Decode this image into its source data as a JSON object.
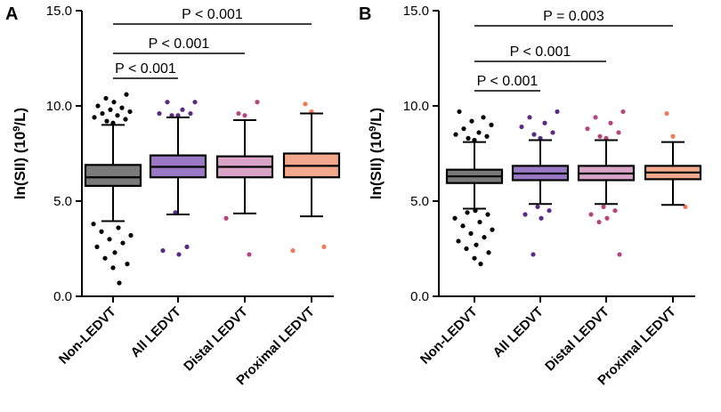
{
  "chart_data": [
    {
      "type": "box",
      "panel_label": "A",
      "ylabel": "ln(SII) (10",
      "ylabel_sup": "9",
      "ylabel_tail": "/L)",
      "ylim": [
        0,
        15
      ],
      "yticks": [
        0.0,
        5.0,
        10.0,
        15.0
      ],
      "ytick_labels": [
        "0.0",
        "5.0",
        "10.0",
        "15.0"
      ],
      "categories": [
        "Non-LEDVT",
        "All LEDVT",
        "Distal LEDVT",
        "Proximal LEDVT"
      ],
      "colors": [
        "#7a7a7a",
        "#9a79c4",
        "#d9a3c8",
        "#f2a88c"
      ],
      "dot_colors": [
        "#000000",
        "#5b2a86",
        "#b5457f",
        "#ee7b55"
      ],
      "boxes": [
        {
          "q1": 5.8,
          "median": 6.25,
          "q3": 6.9,
          "low": 3.95,
          "high": 9.0
        },
        {
          "q1": 6.25,
          "median": 6.8,
          "q3": 7.4,
          "low": 4.3,
          "high": 9.4
        },
        {
          "q1": 6.25,
          "median": 6.8,
          "q3": 7.35,
          "low": 4.35,
          "high": 9.25
        },
        {
          "q1": 6.25,
          "median": 6.85,
          "q3": 7.5,
          "low": 4.2,
          "high": 9.6
        }
      ],
      "outliers": [
        [
          9.1,
          9.2,
          9.3,
          9.4,
          9.5,
          9.6,
          9.7,
          9.8,
          9.9,
          10.0,
          10.2,
          10.4,
          10.6,
          3.8,
          3.6,
          3.4,
          3.2,
          3.0,
          2.8,
          2.6,
          2.3,
          2.0,
          1.7,
          1.5,
          0.7
        ],
        [
          9.5,
          9.5,
          9.6,
          9.6,
          9.8,
          10.2,
          10.2,
          4.4,
          2.6,
          2.4,
          2.2
        ],
        [
          9.5,
          9.6,
          10.2,
          4.1,
          2.2
        ],
        [
          9.7,
          10.1,
          2.6,
          2.4
        ]
      ],
      "comparisons": [
        {
          "from": 0,
          "to": 1,
          "label": "P < 0.001"
        },
        {
          "from": 0,
          "to": 2,
          "label": "P < 0.001"
        },
        {
          "from": 0,
          "to": 3,
          "label": "P < 0.001"
        }
      ]
    },
    {
      "type": "box",
      "panel_label": "B",
      "ylabel": "ln(SII) (10",
      "ylabel_sup": "9",
      "ylabel_tail": "/L)",
      "ylim": [
        0,
        15
      ],
      "yticks": [
        0.0,
        5.0,
        10.0,
        15.0
      ],
      "ytick_labels": [
        "0.0",
        "5.0",
        "10.0",
        "15.0"
      ],
      "categories": [
        "Non-LEDVT",
        "All LEDVT",
        "Distal LEDVT",
        "Proximal LEDVT"
      ],
      "colors": [
        "#7a7a7a",
        "#9a79c4",
        "#d9a3c8",
        "#f2a88c"
      ],
      "dot_colors": [
        "#000000",
        "#5b2a86",
        "#b5457f",
        "#ee7b55"
      ],
      "boxes": [
        {
          "q1": 5.95,
          "median": 6.3,
          "q3": 6.65,
          "low": 4.6,
          "high": 8.1
        },
        {
          "q1": 6.1,
          "median": 6.45,
          "q3": 6.85,
          "low": 4.85,
          "high": 8.2
        },
        {
          "q1": 6.1,
          "median": 6.45,
          "q3": 6.85,
          "low": 4.85,
          "high": 8.2
        },
        {
          "q1": 6.15,
          "median": 6.5,
          "q3": 6.85,
          "low": 4.8,
          "high": 8.1
        }
      ],
      "outliers": [
        [
          8.2,
          8.3,
          8.4,
          8.5,
          8.6,
          8.8,
          9.0,
          9.2,
          9.4,
          9.7,
          4.5,
          4.4,
          4.3,
          4.1,
          3.9,
          3.7,
          3.5,
          3.3,
          3.1,
          2.9,
          2.7,
          2.5,
          2.3,
          2.0,
          1.7
        ],
        [
          8.3,
          8.5,
          8.6,
          8.9,
          9.1,
          9.4,
          9.7,
          4.7,
          4.5,
          4.3,
          4.1,
          2.2
        ],
        [
          8.3,
          8.4,
          8.6,
          8.8,
          9.1,
          9.4,
          9.7,
          4.7,
          4.5,
          4.3,
          4.1,
          3.9,
          2.2
        ],
        [
          8.4,
          9.6,
          4.7
        ]
      ],
      "comparisons": [
        {
          "from": 0,
          "to": 1,
          "label": "P < 0.001"
        },
        {
          "from": 0,
          "to": 2,
          "label": "P < 0.001"
        },
        {
          "from": 0,
          "to": 3,
          "label": "P = 0.003"
        }
      ]
    }
  ]
}
